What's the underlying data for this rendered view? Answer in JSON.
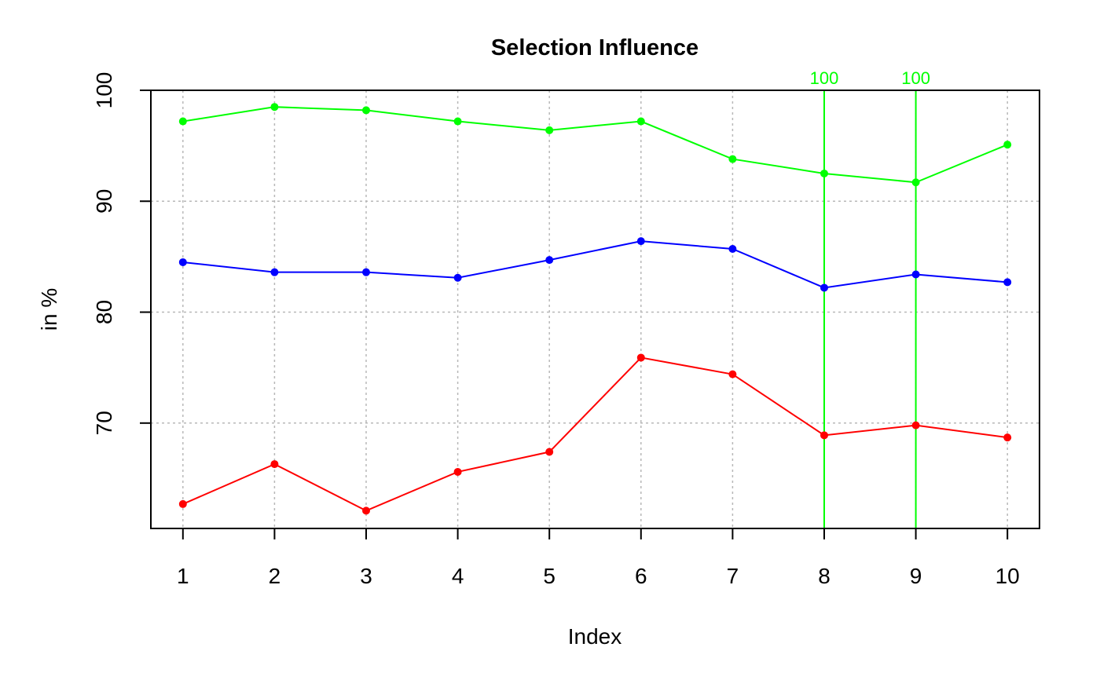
{
  "chart_data": {
    "type": "line",
    "title": "Selection Influence",
    "xlabel": "Index",
    "ylabel": "in %",
    "x": [
      1,
      2,
      3,
      4,
      5,
      6,
      7,
      8,
      9,
      10
    ],
    "xticks": [
      "1",
      "2",
      "3",
      "4",
      "5",
      "6",
      "7",
      "8",
      "9",
      "10"
    ],
    "yticks": [
      "70",
      "80",
      "90",
      "100"
    ],
    "xlim": [
      0.65,
      10.35
    ],
    "ylim": [
      60.5,
      100
    ],
    "grid": true,
    "series": [
      {
        "color": "#00ff00",
        "values": [
          97.2,
          98.5,
          98.2,
          97.2,
          96.4,
          97.2,
          93.8,
          92.5,
          91.7,
          95.1
        ]
      },
      {
        "color": "#0000ff",
        "values": [
          84.5,
          83.6,
          83.6,
          83.1,
          84.7,
          86.4,
          85.7,
          82.2,
          83.4,
          82.7
        ]
      },
      {
        "color": "#ff0000",
        "values": [
          62.7,
          66.3,
          62.1,
          65.6,
          67.4,
          75.9,
          74.4,
          68.9,
          69.8,
          68.7
        ]
      }
    ],
    "reference_lines": [
      {
        "x": 8,
        "label": "100",
        "color": "#00ff00"
      },
      {
        "x": 9,
        "label": "100",
        "color": "#00ff00"
      }
    ],
    "hline_top": 100
  }
}
